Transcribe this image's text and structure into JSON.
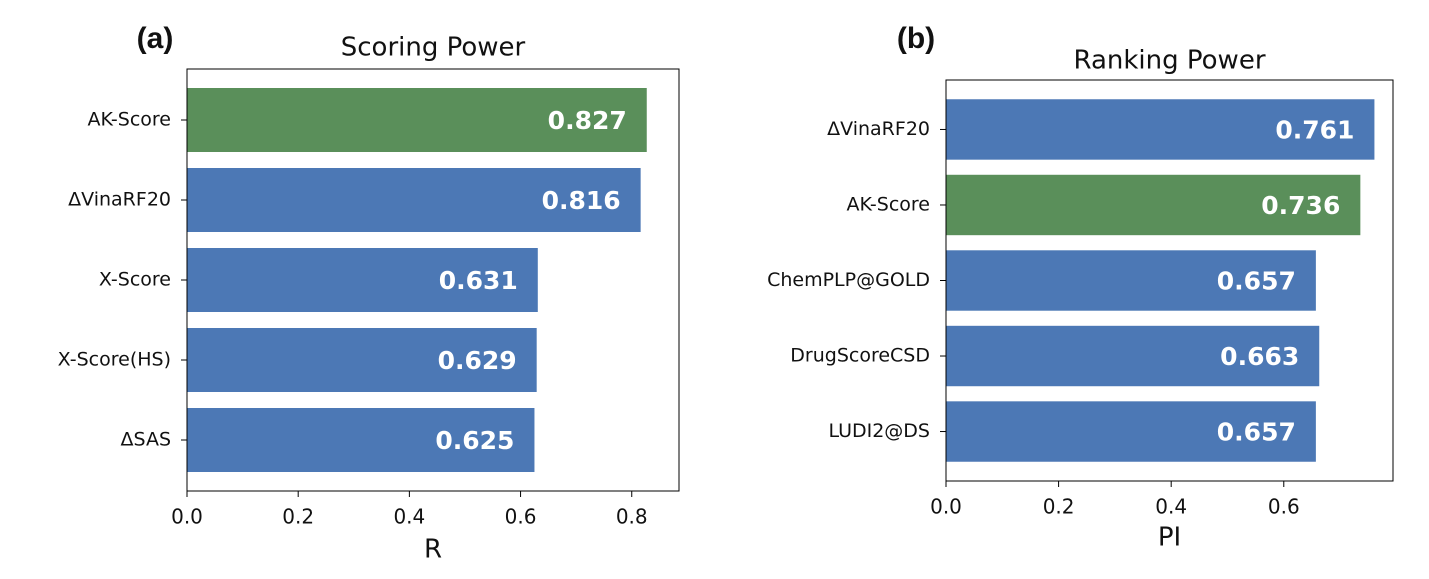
{
  "chart_data": [
    {
      "type": "barh",
      "panel": "(a)",
      "title": "Scoring Power",
      "xlabel": "R",
      "categories": [
        "AK-Score",
        "ΔVinaRF20",
        "X-Score",
        "X-Score(HS)",
        "ΔSAS"
      ],
      "values": [
        0.827,
        0.816,
        0.631,
        0.629,
        0.625
      ],
      "colors": [
        "#5a8f5a",
        "#4c78b5",
        "#4c78b5",
        "#4c78b5",
        "#4c78b5"
      ],
      "xlim": [
        0,
        0.885
      ],
      "xticks": [
        {
          "value": 0,
          "label": "0.0"
        },
        0.2,
        0.4,
        0.6,
        0.8
      ]
    },
    {
      "type": "barh",
      "panel": "(b)",
      "title": "Ranking Power",
      "xlabel": "PI",
      "categories": [
        "ΔVinaRF20",
        "AK-Score",
        "ChemPLP@GOLD",
        "DrugScoreCSD",
        "LUDI2@DS"
      ],
      "values": [
        0.761,
        0.736,
        0.657,
        0.663,
        0.657
      ],
      "colors": [
        "#4c78b5",
        "#5a8f5a",
        "#4c78b5",
        "#4c78b5",
        "#4c78b5"
      ],
      "xlim": [
        0,
        0.794
      ],
      "xticks": [
        {
          "value": 0,
          "label": "0.0"
        },
        0.2,
        0.4,
        0.6
      ]
    }
  ]
}
